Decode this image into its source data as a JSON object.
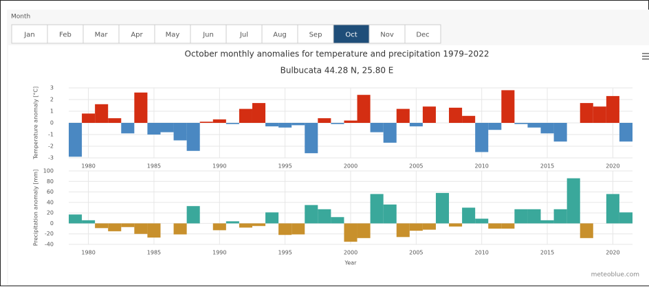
{
  "header": "Month",
  "tabs": [
    "Jan",
    "Feb",
    "Mar",
    "Apr",
    "May",
    "Jun",
    "Jul",
    "Aug",
    "Sep",
    "Oct",
    "Nov",
    "Dec"
  ],
  "selected_tab": 9,
  "credit": "meteoblue.com",
  "chart_data": [
    {
      "type": "bar",
      "title": "October monthly anomalies for temperature and precipitation 1979–2022",
      "subtitle": "Bulbucata 44.28 N, 25.80 E",
      "ylabel": "Temperature anomaly [°C]",
      "x": [
        1979,
        1980,
        1981,
        1982,
        1983,
        1984,
        1985,
        1986,
        1987,
        1988,
        1989,
        1990,
        1991,
        1992,
        1993,
        1994,
        1995,
        1996,
        1997,
        1998,
        1999,
        2000,
        2001,
        2002,
        2003,
        2004,
        2005,
        2006,
        2007,
        2008,
        2009,
        2010,
        2011,
        2012,
        2013,
        2014,
        2015,
        2016,
        2017,
        2018,
        2019,
        2020,
        2021
      ],
      "values": [
        -2.9,
        0.8,
        1.6,
        0.4,
        -0.9,
        2.6,
        -1.0,
        -0.8,
        -1.5,
        -2.4,
        0.1,
        0.3,
        -0.1,
        1.2,
        1.7,
        -0.3,
        -0.4,
        -0.2,
        -2.6,
        0.4,
        -0.1,
        0.2,
        2.4,
        -0.8,
        -1.7,
        1.2,
        -0.3,
        1.4,
        0,
        1.3,
        0.6,
        -2.5,
        -0.6,
        2.8,
        -0.1,
        -0.4,
        -0.9,
        -1.6,
        0,
        1.7,
        1.4,
        2.3,
        -1.6
      ],
      "color_positive": "#d42e12",
      "color_negative": "#4a88c2",
      "xlim": [
        1978.5,
        2021.5
      ],
      "xticks": [
        1980,
        1985,
        1990,
        1995,
        2000,
        2005,
        2010,
        2015,
        2020
      ],
      "ylim": [
        -3,
        3
      ],
      "yticks": [
        -3,
        -2,
        -1,
        0,
        1,
        2,
        3
      ],
      "grid": true
    },
    {
      "type": "bar",
      "ylabel": "Precipitation anomaly [mm]",
      "xlabel": "Year",
      "x": [
        1979,
        1980,
        1981,
        1982,
        1983,
        1984,
        1985,
        1986,
        1987,
        1988,
        1989,
        1990,
        1991,
        1992,
        1993,
        1994,
        1995,
        1996,
        1997,
        1998,
        1999,
        2000,
        2001,
        2002,
        2003,
        2004,
        2005,
        2006,
        2007,
        2008,
        2009,
        2010,
        2011,
        2012,
        2013,
        2014,
        2015,
        2016,
        2017,
        2018,
        2019,
        2020,
        2021
      ],
      "values": [
        17,
        6,
        -9,
        -15,
        -7,
        -20,
        -27,
        0,
        -21,
        33,
        0,
        -13,
        4,
        -8,
        -5,
        21,
        -22,
        -21,
        35,
        27,
        12,
        -35,
        -28,
        56,
        36,
        -26,
        -14,
        -12,
        58,
        -6,
        30,
        9,
        -10,
        -10,
        27,
        27,
        6,
        27,
        86,
        -28,
        0,
        56,
        21
      ],
      "color_positive": "#3aa89b",
      "color_negative": "#c8902c",
      "xlim": [
        1978.5,
        2021.5
      ],
      "xticks": [
        1980,
        1985,
        1990,
        1995,
        2000,
        2005,
        2010,
        2015,
        2020
      ],
      "ylim": [
        -40,
        100
      ],
      "yticks": [
        -40,
        -20,
        0,
        20,
        40,
        60,
        80,
        100
      ],
      "grid": true
    }
  ]
}
